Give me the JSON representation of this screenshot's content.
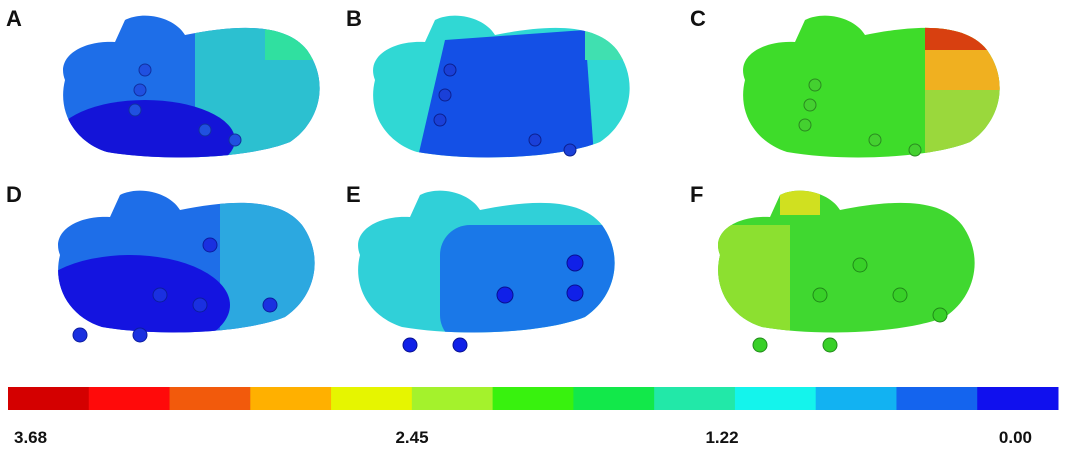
{
  "panels": [
    {
      "label": "A"
    },
    {
      "label": "B"
    },
    {
      "label": "C"
    },
    {
      "label": "D"
    },
    {
      "label": "E"
    },
    {
      "label": "F"
    }
  ],
  "colorbar": {
    "colors": [
      "#d40000",
      "#ff0a0a",
      "#f25a0c",
      "#ffb000",
      "#e6f500",
      "#a4f22c",
      "#38f20e",
      "#12e84a",
      "#22e8a8",
      "#14f4ec",
      "#12b2f2",
      "#1464ee",
      "#1010ee"
    ],
    "labels": [
      "3.68",
      "2.45",
      "1.22",
      "0.00"
    ]
  }
}
